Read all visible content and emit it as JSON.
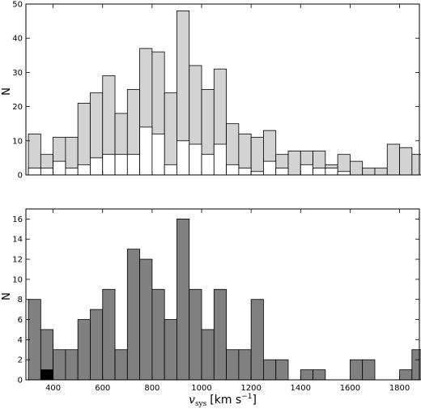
{
  "colors": {
    "top_total_fill": "#d3d3d3",
    "top_sub_fill": "#ffffff",
    "bottom_fill": "#808080",
    "bottom_sub_fill": "#000000",
    "edge": "#000000"
  },
  "chart_data": [
    {
      "type": "bar",
      "stacked_overlay": true,
      "xlim": [
        290,
        1880
      ],
      "ylim": [
        0,
        50
      ],
      "bin_width": 50,
      "x": [
        300,
        350,
        400,
        450,
        500,
        550,
        600,
        650,
        700,
        750,
        800,
        850,
        900,
        950,
        1000,
        1050,
        1100,
        1150,
        1200,
        1250,
        1300,
        1350,
        1400,
        1450,
        1500,
        1550,
        1600,
        1650,
        1700,
        1750,
        1800,
        1850
      ],
      "series": [
        {
          "values": [
            12,
            6,
            11,
            11,
            21,
            24,
            29,
            18,
            25,
            37,
            36,
            24,
            48,
            32,
            25,
            31,
            15,
            12,
            11,
            13,
            6,
            7,
            7,
            7,
            3,
            6,
            4,
            2,
            2,
            9,
            8,
            6
          ]
        },
        {
          "values": [
            2,
            2,
            4,
            2,
            3,
            5,
            6,
            6,
            6,
            14,
            12,
            3,
            10,
            9,
            6,
            9,
            3,
            2,
            1,
            4,
            2,
            0,
            3,
            2,
            2,
            1,
            0,
            0,
            0,
            0,
            0,
            0
          ]
        }
      ],
      "yticks": [
        0,
        10,
        20,
        30,
        40,
        50
      ],
      "ylabel": "N",
      "xlabel": "",
      "grid": false
    },
    {
      "type": "bar",
      "stacked_overlay": true,
      "xlim": [
        290,
        1880
      ],
      "ylim": [
        0,
        17
      ],
      "bin_width": 50,
      "x": [
        300,
        350,
        400,
        450,
        500,
        550,
        600,
        650,
        700,
        750,
        800,
        850,
        900,
        950,
        1000,
        1050,
        1100,
        1150,
        1200,
        1250,
        1300,
        1350,
        1400,
        1450,
        1500,
        1550,
        1600,
        1650,
        1700,
        1750,
        1800,
        1850
      ],
      "series": [
        {
          "values": [
            8,
            5,
            3,
            3,
            6,
            7,
            9,
            3,
            13,
            12,
            9,
            6,
            16,
            9,
            5,
            9,
            3,
            3,
            8,
            2,
            2,
            0,
            1,
            1,
            0,
            0,
            2,
            2,
            0,
            0,
            1,
            3
          ]
        },
        {
          "values": [
            0,
            1,
            0,
            0,
            0,
            0,
            0,
            0,
            0,
            0,
            0,
            0,
            0,
            0,
            0,
            0,
            0,
            0,
            0,
            0,
            0,
            0,
            0,
            0,
            0,
            0,
            0,
            0,
            0,
            0,
            0,
            0
          ]
        }
      ],
      "xticks": [
        400,
        600,
        800,
        1000,
        1200,
        1400,
        1600,
        1800
      ],
      "yticks": [
        0,
        2,
        4,
        6,
        8,
        10,
        12,
        14,
        16
      ],
      "ylabel": "N",
      "xlabel_main": "v",
      "xlabel_sub": "sys",
      "xlabel_unit": "[km s",
      "xlabel_exp": "−1",
      "xlabel_close": "]",
      "grid": false
    }
  ]
}
